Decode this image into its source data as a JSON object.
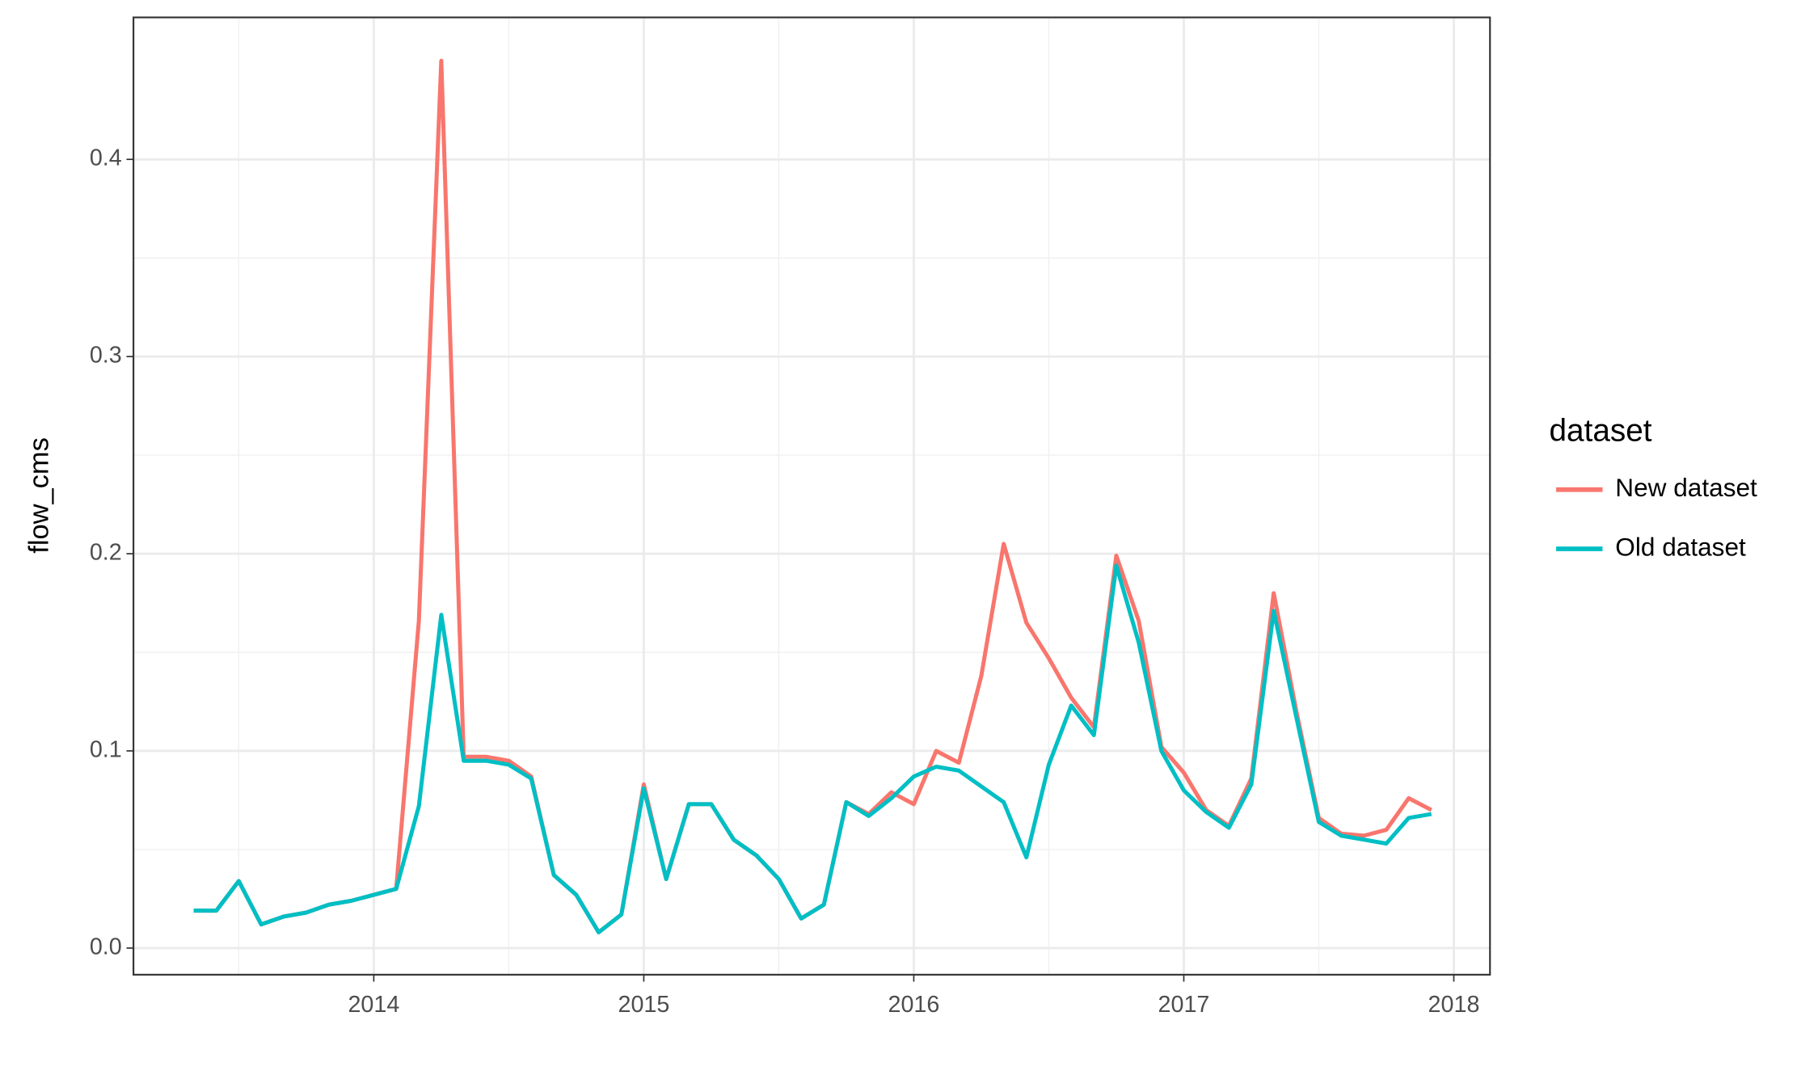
{
  "chart_data": {
    "type": "line",
    "y_label": "flow_cms",
    "legend_title": "dataset",
    "legend": "right",
    "grid": true,
    "x": [
      2013.333,
      2013.417,
      2013.5,
      2013.583,
      2013.667,
      2013.75,
      2013.833,
      2013.917,
      2014,
      2014.083,
      2014.167,
      2014.25,
      2014.333,
      2014.417,
      2014.5,
      2014.583,
      2014.667,
      2014.75,
      2014.833,
      2014.917,
      2015,
      2015.083,
      2015.167,
      2015.25,
      2015.333,
      2015.417,
      2015.5,
      2015.583,
      2015.667,
      2015.75,
      2015.833,
      2015.917,
      2016,
      2016.083,
      2016.167,
      2016.25,
      2016.333,
      2016.417,
      2016.5,
      2016.583,
      2016.667,
      2016.75,
      2016.833,
      2016.917,
      2017,
      2017.083,
      2017.167,
      2017.25,
      2017.333,
      2017.417,
      2017.5,
      2017.583,
      2017.667,
      2017.75,
      2017.833,
      2017.917
    ],
    "series": [
      {
        "name": "New dataset",
        "color": "#F8766D",
        "values": [
          0.019,
          0.019,
          0.034,
          0.012,
          0.016,
          0.018,
          0.022,
          0.024,
          0.027,
          0.03,
          0.166,
          0.45,
          0.097,
          0.097,
          0.095,
          0.087,
          0.037,
          0.027,
          0.008,
          0.017,
          0.083,
          0.035,
          0.073,
          0.073,
          0.055,
          0.047,
          0.035,
          0.015,
          0.022,
          0.074,
          0.068,
          0.079,
          0.073,
          0.1,
          0.094,
          0.138,
          0.205,
          0.165,
          0.147,
          0.127,
          0.112,
          0.199,
          0.166,
          0.102,
          0.089,
          0.07,
          0.062,
          0.086,
          0.18,
          0.12,
          0.066,
          0.058,
          0.057,
          0.06,
          0.076,
          0.07
        ]
      },
      {
        "name": "Old dataset",
        "color": "#00BFC4",
        "values": [
          0.019,
          0.019,
          0.034,
          0.012,
          0.016,
          0.018,
          0.022,
          0.024,
          0.027,
          0.03,
          0.072,
          0.169,
          0.095,
          0.095,
          0.093,
          0.086,
          0.037,
          0.027,
          0.008,
          0.017,
          0.081,
          0.035,
          0.073,
          0.073,
          0.055,
          0.047,
          0.035,
          0.015,
          0.022,
          0.074,
          0.067,
          0.076,
          0.087,
          0.092,
          0.09,
          0.082,
          0.074,
          0.046,
          0.093,
          0.123,
          0.108,
          0.194,
          0.155,
          0.1,
          0.08,
          0.069,
          0.061,
          0.083,
          0.171,
          0.117,
          0.064,
          0.057,
          0.055,
          0.053,
          0.066,
          0.068
        ]
      }
    ],
    "xlim": [
      2013.11,
      2018.134
    ],
    "xticks": [
      2014,
      2015,
      2016,
      2017,
      2018
    ],
    "ylim": [
      -0.0135,
      0.472
    ],
    "yticks": [
      {
        "value": 0,
        "label": "0.0"
      },
      0.1,
      0.2,
      0.3,
      0.4
    ]
  }
}
